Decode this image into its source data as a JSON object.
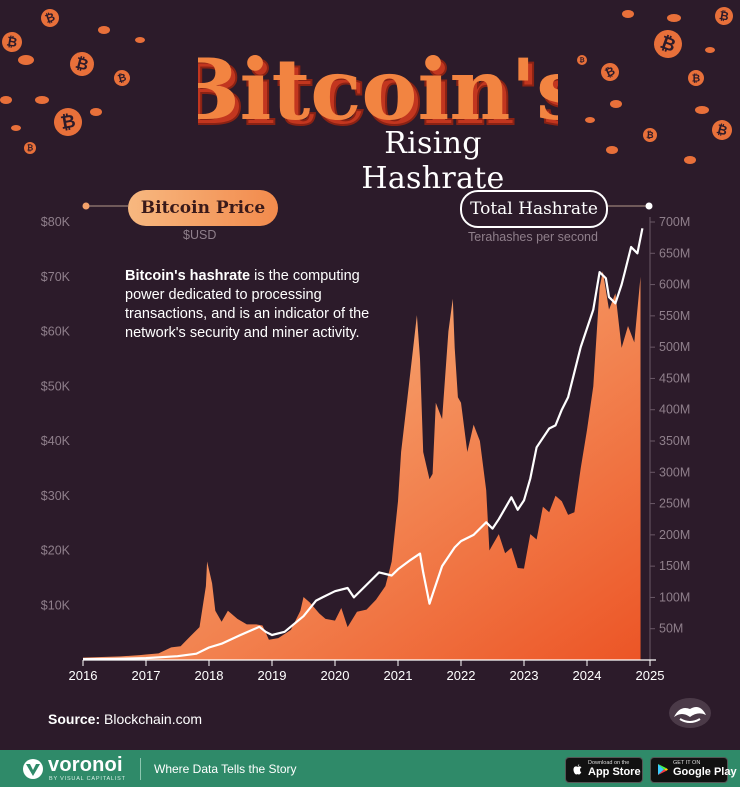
{
  "header": {
    "title": "Bitcoin's",
    "subtitle": "Rising Hashrate"
  },
  "legend": {
    "left_label": "Bitcoin Price",
    "left_unit": "$USD",
    "right_label": "Total Hashrate",
    "right_unit": "Terahashes per second"
  },
  "annotation": {
    "bold": "Bitcoin's hashrate",
    "rest": " is the computing power dedicated to processing transactions, and is an indicator of the network's security and miner activity."
  },
  "source": {
    "label": "Source:",
    "text": " Blockchain.com"
  },
  "footer": {
    "brand": "voronoi",
    "brand_sub": "BY VISUAL CAPITALIST",
    "tagline": "Where Data Tells the Story",
    "appstore_small": "Download on the",
    "appstore_big": "App Store",
    "gplay_small": "GET IT ON",
    "gplay_big": "Google Play"
  },
  "colors": {
    "background": "#2c1b2a",
    "price_area_light": "#fbc48c",
    "price_area_dark": "#ec5526",
    "hashrate_line": "#ffffff",
    "footer_bg": "#2f8a69"
  },
  "chart_data": {
    "type": "area",
    "x_ticks": [
      "2016",
      "2017",
      "2018",
      "2019",
      "2020",
      "2021",
      "2022",
      "2023",
      "2024",
      "2025"
    ],
    "xlim": [
      2016,
      2025
    ],
    "y_left_ticks": [
      "$10K",
      "$20K",
      "$30K",
      "$40K",
      "$50K",
      "$60K",
      "$70K",
      "$80K"
    ],
    "y_left_lim": [
      0,
      80000
    ],
    "y_right_ticks": [
      "50M",
      "100M",
      "150M",
      "200M",
      "250M",
      "300M",
      "350M",
      "400M",
      "450M",
      "500M",
      "550M",
      "600M",
      "650M",
      "700M"
    ],
    "y_right_lim": [
      0,
      700000000
    ],
    "series": [
      {
        "name": "Bitcoin Price",
        "axis": "left",
        "x": [
          2016.0,
          2016.3,
          2016.6,
          2016.9,
          2017.0,
          2017.2,
          2017.4,
          2017.55,
          2017.7,
          2017.85,
          2017.95,
          2017.97,
          2018.05,
          2018.1,
          2018.2,
          2018.3,
          2018.45,
          2018.6,
          2018.75,
          2018.85,
          2018.95,
          2019.1,
          2019.3,
          2019.45,
          2019.5,
          2019.6,
          2019.75,
          2019.85,
          2020.0,
          2020.1,
          2020.2,
          2020.35,
          2020.5,
          2020.65,
          2020.8,
          2020.9,
          2021.0,
          2021.05,
          2021.15,
          2021.25,
          2021.3,
          2021.35,
          2021.4,
          2021.5,
          2021.55,
          2021.6,
          2021.7,
          2021.8,
          2021.87,
          2021.9,
          2021.95,
          2022.0,
          2022.1,
          2022.2,
          2022.3,
          2022.4,
          2022.45,
          2022.5,
          2022.6,
          2022.7,
          2022.8,
          2022.9,
          2023.0,
          2023.1,
          2023.2,
          2023.3,
          2023.4,
          2023.5,
          2023.6,
          2023.7,
          2023.8,
          2023.9,
          2024.0,
          2024.1,
          2024.2,
          2024.25,
          2024.35,
          2024.45,
          2024.55,
          2024.65,
          2024.75,
          2024.85
        ],
        "y": [
          430,
          550,
          650,
          900,
          1000,
          1200,
          2300,
          2500,
          4300,
          6000,
          13500,
          18000,
          14000,
          9000,
          7000,
          9000,
          7500,
          6500,
          6500,
          6300,
          3700,
          4000,
          5500,
          9000,
          11500,
          10500,
          8500,
          7500,
          7200,
          9500,
          6000,
          8800,
          9200,
          11000,
          13500,
          18000,
          29000,
          38000,
          48000,
          58000,
          63000,
          55000,
          38000,
          33000,
          34000,
          47000,
          44000,
          60000,
          66000,
          57000,
          48000,
          47000,
          38000,
          43000,
          40000,
          31000,
          20000,
          21000,
          23000,
          19500,
          20500,
          16800,
          16700,
          23000,
          22000,
          28000,
          27000,
          30000,
          29000,
          26500,
          27000,
          35000,
          42000,
          50000,
          68000,
          71000,
          64000,
          67000,
          57000,
          61000,
          58000,
          70000
        ]
      },
      {
        "name": "Total Hashrate",
        "axis": "right",
        "x": [
          2016.0,
          2016.5,
          2017.0,
          2017.5,
          2017.8,
          2018.0,
          2018.2,
          2018.5,
          2018.8,
          2018.9,
          2019.0,
          2019.2,
          2019.5,
          2019.7,
          2019.8,
          2020.0,
          2020.2,
          2020.3,
          2020.5,
          2020.7,
          2020.9,
          2021.0,
          2021.2,
          2021.35,
          2021.4,
          2021.5,
          2021.55,
          2021.7,
          2021.9,
          2022.0,
          2022.2,
          2022.4,
          2022.5,
          2022.6,
          2022.8,
          2022.9,
          2023.0,
          2023.1,
          2023.2,
          2023.4,
          2023.5,
          2023.6,
          2023.7,
          2023.8,
          2023.9,
          2024.0,
          2024.1,
          2024.2,
          2024.3,
          2024.35,
          2024.45,
          2024.55,
          2024.6,
          2024.7,
          2024.8,
          2024.88
        ],
        "y": [
          1500000,
          1800000,
          3000000,
          6000000,
          10000000,
          20000000,
          26000000,
          40000000,
          53000000,
          45000000,
          40000000,
          45000000,
          70000000,
          95000000,
          100000000,
          110000000,
          115000000,
          100000000,
          120000000,
          140000000,
          135000000,
          145000000,
          160000000,
          170000000,
          140000000,
          90000000,
          105000000,
          150000000,
          180000000,
          190000000,
          200000000,
          220000000,
          210000000,
          225000000,
          260000000,
          240000000,
          255000000,
          290000000,
          340000000,
          370000000,
          375000000,
          400000000,
          420000000,
          460000000,
          500000000,
          530000000,
          560000000,
          620000000,
          610000000,
          580000000,
          570000000,
          600000000,
          620000000,
          660000000,
          650000000,
          690000000
        ]
      }
    ]
  }
}
